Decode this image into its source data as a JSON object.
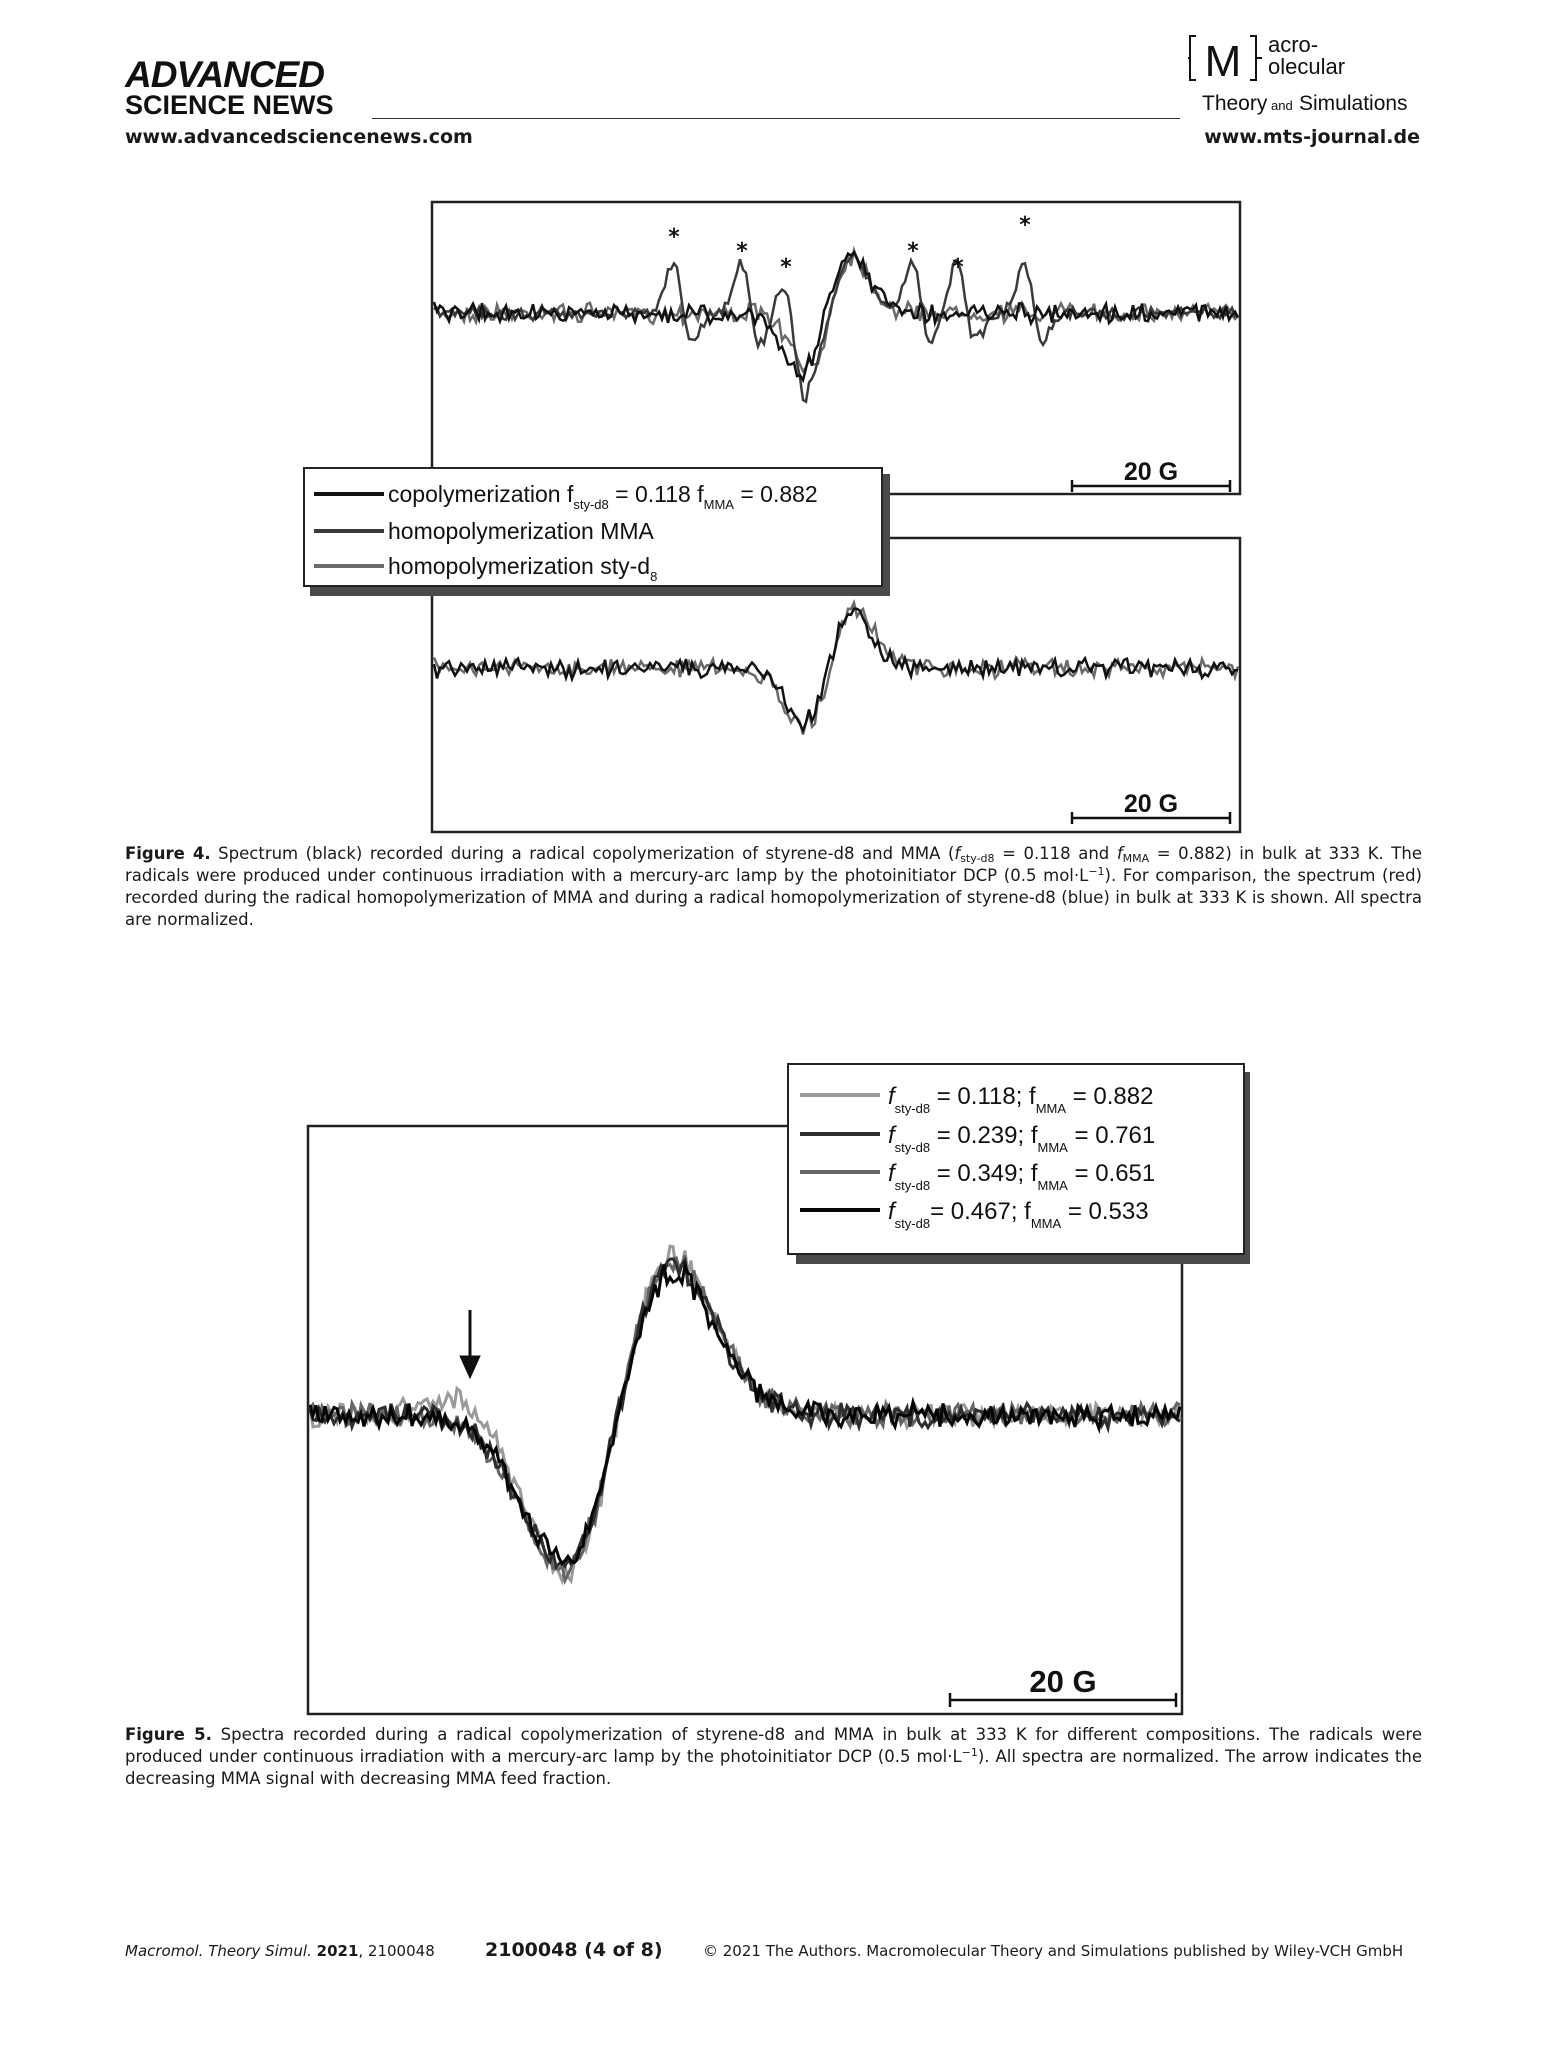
{
  "header": {
    "brand_line1": "ADVANCED",
    "brand_line2": "SCIENCE NEWS",
    "url_left": "www.advancedsciencenews.com",
    "journal_logo_letter": "M",
    "journal_logo_top": "acro-",
    "journal_logo_mid": "olecular",
    "journal_logo_sub1": "Theory",
    "journal_logo_and": "and",
    "journal_logo_sub2": "Simulations",
    "url_right": "www.mts-journal.de"
  },
  "figure4": {
    "top_panel": {
      "asterisk": "*",
      "scale_label": "20 G"
    },
    "bottom_panel": {
      "scale_label": "20 G"
    },
    "legend": [
      {
        "name": "copolymerization f",
        "sub1": "sty-d8",
        "eq1": " = 0.118 f",
        "sub2": "MMA",
        "eq2": " = 0.882",
        "color": "#111111"
      },
      {
        "name": "homopolymerization MMA",
        "color": "#3a3a3a"
      },
      {
        "name": "homopolymerization sty-d",
        "sub1": "8",
        "color": "#6a6a6a"
      }
    ],
    "caption": {
      "label": "Figure 4.",
      "t1": " Spectrum (black) recorded during a radical copolymerization of styrene-d8 and MMA (",
      "f1": "f",
      "f1sub": "sty-d8",
      "t2": " = 0.118 and ",
      "f2": "f",
      "f2sub": "MMA",
      "t3": " = 0.882) in bulk at 333 K. The radicals were produced under continuous irradiation with a mercury-arc lamp by the photoinitiator DCP (0.5 mol·L",
      "sup": "−1",
      "t4": "). For comparison, the spectrum (red) recorded during the radical homopolymerization of MMA and during a radical homopolymerization of styrene-d8 (blue) in bulk at 333 K is shown. All spectra are normalized."
    }
  },
  "figure5": {
    "scale_label": "20 G",
    "legend": [
      {
        "f": "f",
        "sub1": "sty-d8",
        "v1": " = 0.118; f",
        "sub2": "MMA",
        "v2": " = 0.882",
        "color": "#9a9a9a"
      },
      {
        "f": "f",
        "sub1": "sty-d8",
        "v1": " = 0.239; f",
        "sub2": "MMA",
        "v2": " = 0.761",
        "color": "#2e2e2e"
      },
      {
        "f": "f",
        "sub1": "sty-d8",
        "v1": " = 0.349; f",
        "sub2": "MMA",
        "v2": " = 0.651",
        "color": "#666666"
      },
      {
        "f": "f",
        "sub1": "sty-d8",
        "v1": "= 0.467; f",
        "sub2": "MMA",
        "v2": " = 0.533",
        "color": "#050505"
      }
    ],
    "caption": {
      "label": "Figure 5.",
      "t1": " Spectra recorded during a radical copolymerization of styrene-d8 and MMA in bulk at 333 K for different compositions. The radicals were produced under continuous irradiation with a mercury-arc lamp by the photoinitiator DCP (0.5 mol·L",
      "sup": "−1",
      "t2": "). All spectra are normalized. The arrow indicates the decreasing MMA signal with decreasing MMA feed fraction."
    }
  },
  "footer": {
    "journal": "Macromol. Theory Simul.",
    "year": "2021",
    "article": ", 2100048",
    "page": "2100048 (4 of 8)",
    "copyright": "© 2021 The Authors. Macromolecular Theory and Simulations published by Wiley-VCH GmbH"
  }
}
